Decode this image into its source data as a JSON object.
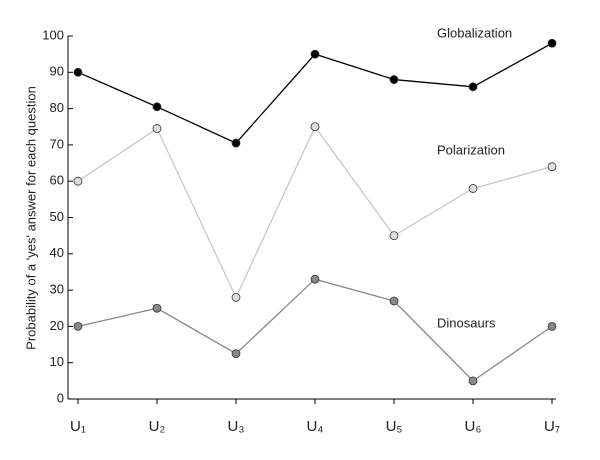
{
  "chart_data": {
    "type": "line",
    "y_label": "Probability of a 'yes' answer for each question",
    "categories": [
      "U₁",
      "U₂",
      "U₃",
      "U₄",
      "U₅",
      "U₆",
      "U₇"
    ],
    "series": [
      {
        "name": "Globalization",
        "color": "#000000",
        "marker_fill": "#000000",
        "values": [
          90,
          80.5,
          70.5,
          95,
          88,
          86,
          98
        ]
      },
      {
        "name": "Polarization",
        "color": "#c8c8c8",
        "marker_fill": "#dddddd",
        "values": [
          60,
          74.5,
          28,
          75,
          45,
          58,
          64
        ]
      },
      {
        "name": "Dinosaurs",
        "color": "#8a8a8a",
        "marker_fill": "#888888",
        "values": [
          20,
          25,
          12.5,
          33,
          27,
          5,
          20
        ]
      }
    ],
    "ylim": [
      0,
      100
    ],
    "yticks": [
      0,
      10,
      20,
      30,
      40,
      50,
      60,
      70,
      80,
      90,
      100
    ]
  }
}
